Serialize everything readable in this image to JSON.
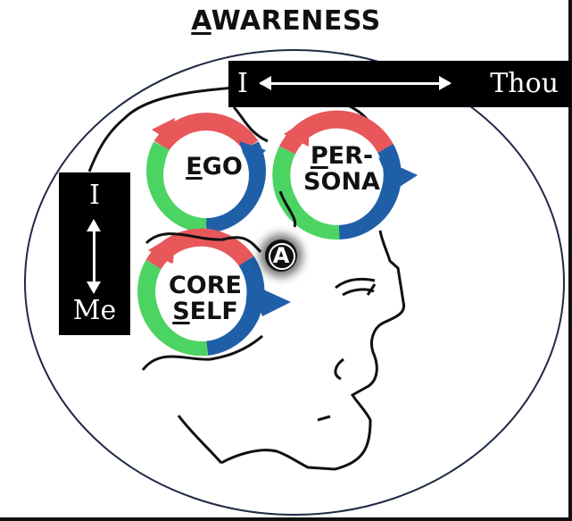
{
  "title": {
    "first_letter": "A",
    "rest": "WARENESS"
  },
  "i_thou": {
    "left": "I",
    "right": "Thou"
  },
  "i_me": {
    "top": "I",
    "bottom": "Me"
  },
  "cycles": {
    "ego": {
      "first_letter": "E",
      "rest": "GO"
    },
    "persona": {
      "line1_first": "P",
      "line1_rest": "ER-",
      "line2": "SONA"
    },
    "core_self": {
      "line1": "CORE",
      "line2_first": "S",
      "line2_rest": "ELF"
    }
  },
  "awareness_marker": "A",
  "colors": {
    "red": "#e8575a",
    "green": "#4cd463",
    "blue": "#1f5fa8",
    "outline": "#1f2a44",
    "ink": "#111111"
  }
}
